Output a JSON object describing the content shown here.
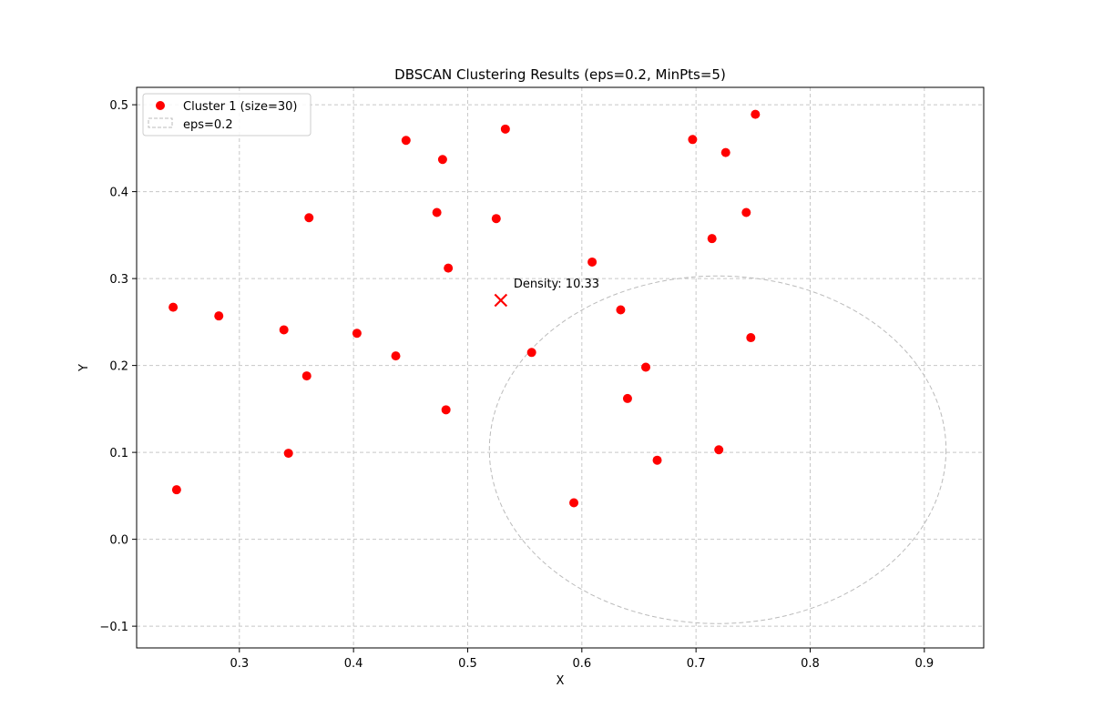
{
  "chart_data": {
    "type": "scatter",
    "title": "DBSCAN Clustering Results (eps=0.2, MinPts=5)",
    "xlabel": "X",
    "ylabel": "Y",
    "xlim": [
      0.21,
      0.952
    ],
    "ylim": [
      -0.125,
      0.52
    ],
    "xticks": [
      0.3,
      0.4,
      0.5,
      0.6,
      0.7,
      0.8,
      0.9
    ],
    "xtick_labels": [
      "0.3",
      "0.4",
      "0.5",
      "0.6",
      "0.7",
      "0.8",
      "0.9"
    ],
    "yticks": [
      -0.1,
      0.0,
      0.1,
      0.2,
      0.3,
      0.4,
      0.5
    ],
    "ytick_labels": [
      "−0.1",
      "0.0",
      "0.1",
      "0.2",
      "0.3",
      "0.4",
      "0.5"
    ],
    "grid": true,
    "legend_position": "top-left",
    "series": [
      {
        "name": "Cluster 1 (size=30)",
        "color": "#ff0000",
        "points": [
          [
            0.242,
            0.267
          ],
          [
            0.245,
            0.057
          ],
          [
            0.282,
            0.257
          ],
          [
            0.339,
            0.241
          ],
          [
            0.343,
            0.099
          ],
          [
            0.359,
            0.188
          ],
          [
            0.361,
            0.37
          ],
          [
            0.403,
            0.237
          ],
          [
            0.437,
            0.211
          ],
          [
            0.446,
            0.459
          ],
          [
            0.473,
            0.376
          ],
          [
            0.478,
            0.437
          ],
          [
            0.481,
            0.149
          ],
          [
            0.483,
            0.312
          ],
          [
            0.525,
            0.369
          ],
          [
            0.533,
            0.472
          ],
          [
            0.556,
            0.215
          ],
          [
            0.593,
            0.042
          ],
          [
            0.609,
            0.319
          ],
          [
            0.634,
            0.264
          ],
          [
            0.64,
            0.162
          ],
          [
            0.656,
            0.198
          ],
          [
            0.666,
            0.091
          ],
          [
            0.697,
            0.46
          ],
          [
            0.714,
            0.346
          ],
          [
            0.72,
            0.103
          ],
          [
            0.726,
            0.445
          ],
          [
            0.744,
            0.376
          ],
          [
            0.748,
            0.232
          ],
          [
            0.752,
            0.489
          ]
        ]
      }
    ],
    "eps_circle": {
      "label": "eps=0.2",
      "center": [
        0.719,
        0.103
      ],
      "radius": 0.2,
      "color": "#bbbbbb"
    },
    "core_marker": {
      "x": 0.529,
      "y": 0.275,
      "color": "#ff0000",
      "annotation": "Density: 10.33"
    }
  }
}
